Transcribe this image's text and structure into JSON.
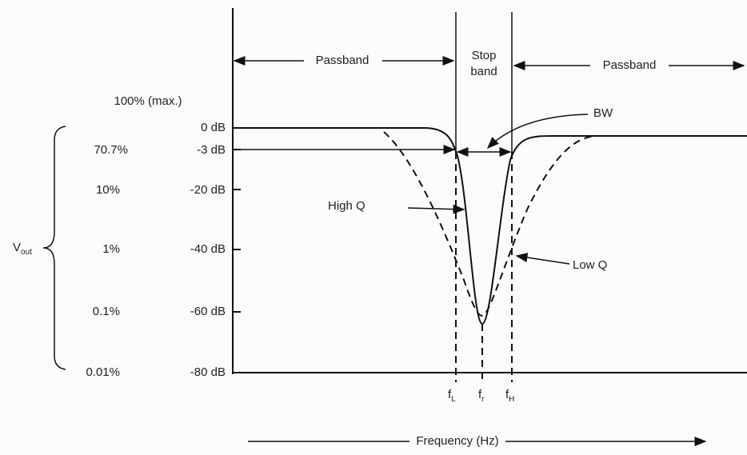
{
  "top_labels": {
    "left_passband": "Passband",
    "stop_band_line1": "Stop",
    "stop_band_line2": "band",
    "right_passband": "Passband"
  },
  "percent_labels": [
    "100% (max.)",
    "70.7%",
    "10%",
    "1%",
    "0.1%",
    "0.01%"
  ],
  "db_labels": [
    "0 dB",
    "-3 dB",
    "-20 dB",
    "-40 dB",
    "-60 dB",
    "-80 dB"
  ],
  "vout": {
    "symbol": "V",
    "subscript": "out"
  },
  "annotations": {
    "bw": "BW",
    "high_q": "High Q",
    "low_q": "Low Q"
  },
  "frequency_marks": [
    {
      "symbol": "f",
      "subscript": "L"
    },
    {
      "symbol": "f",
      "subscript": "r"
    },
    {
      "symbol": "f",
      "subscript": "H"
    }
  ],
  "x_axis_label": "Frequency (Hz)"
}
